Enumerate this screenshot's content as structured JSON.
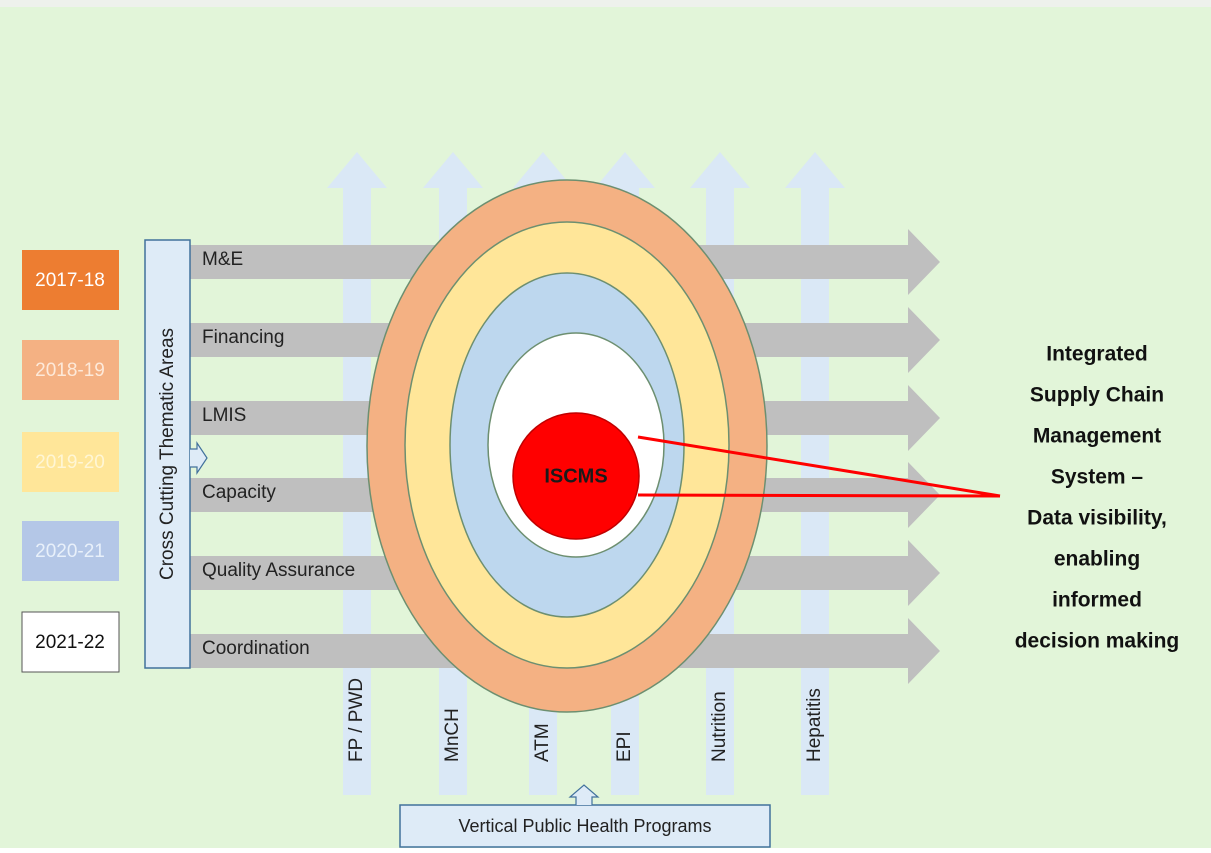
{
  "legend": [
    "2017-18",
    "2018-19",
    "2019-20",
    "2020-21",
    "2021-22"
  ],
  "cross_cutting_label": "Cross Cutting Thematic Areas",
  "thematic_areas": [
    "M&E",
    "Financing",
    "LMIS",
    "Capacity",
    "Quality Assurance",
    "Coordination"
  ],
  "programs": [
    "FP / PWD",
    "MnCH",
    "ATM",
    "EPI",
    "Nutrition",
    "Hepatitis"
  ],
  "vertical_label": "Vertical Public Health Programs",
  "center_label": "ISCMS",
  "description": [
    "Integrated",
    "Supply Chain",
    "Management",
    "System –",
    "Data visibility,",
    "enabling",
    "informed",
    "decision making"
  ]
}
